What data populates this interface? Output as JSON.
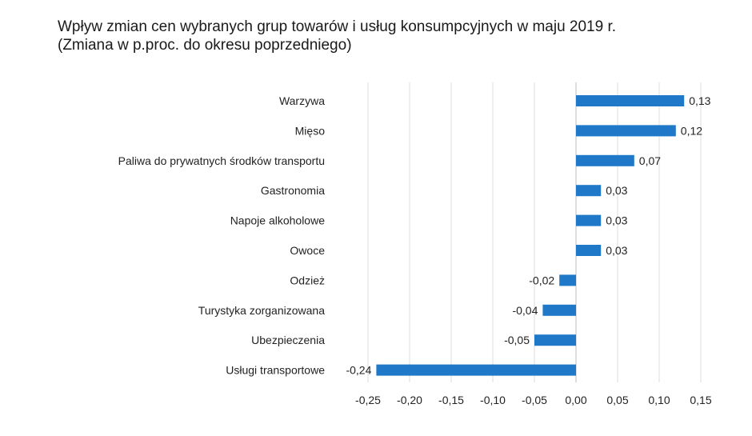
{
  "title_line1": "Wpływ zmian cen wybranych grup towarów i usług konsumpcyjnych w maju 2019 r.",
  "title_line2": "(Zmiana w p.proc. do okresu poprzedniego)",
  "bar_color": "#1f78c8",
  "chart_data": {
    "type": "bar",
    "orientation": "horizontal",
    "title": "Wpływ zmian cen wybranych grup towarów i usług konsumpcyjnych w maju 2019 r.",
    "subtitle": "(Zmiana w p.proc. do okresu poprzedniego)",
    "categories": [
      "Warzywa",
      "Mięso",
      "Paliwa do prywatnych środków transportu",
      "Gastronomia",
      "Napoje alkoholowe",
      "Owoce",
      "Odzież",
      "Turystyka zorganizowana",
      "Ubezpieczenia",
      "Usługi transportowe"
    ],
    "values": [
      0.13,
      0.12,
      0.07,
      0.03,
      0.03,
      0.03,
      -0.02,
      -0.04,
      -0.05,
      -0.24
    ],
    "value_labels": [
      "0,13",
      "0,12",
      "0,07",
      "0,03",
      "0,03",
      "0,03",
      "-0,02",
      "-0,04",
      "-0,05",
      "-0,24"
    ],
    "xlim": [
      -0.25,
      0.15
    ],
    "x_ticks": [
      -0.25,
      -0.2,
      -0.15,
      -0.1,
      -0.05,
      0,
      0.05,
      0.1,
      0.15
    ],
    "x_tick_labels": [
      "-0,25",
      "-0,20",
      "-0,15",
      "-0,10",
      "-0,05",
      "0,00",
      "0,05",
      "0,10",
      "0,15"
    ],
    "grid": true,
    "xlabel": "",
    "ylabel": ""
  }
}
